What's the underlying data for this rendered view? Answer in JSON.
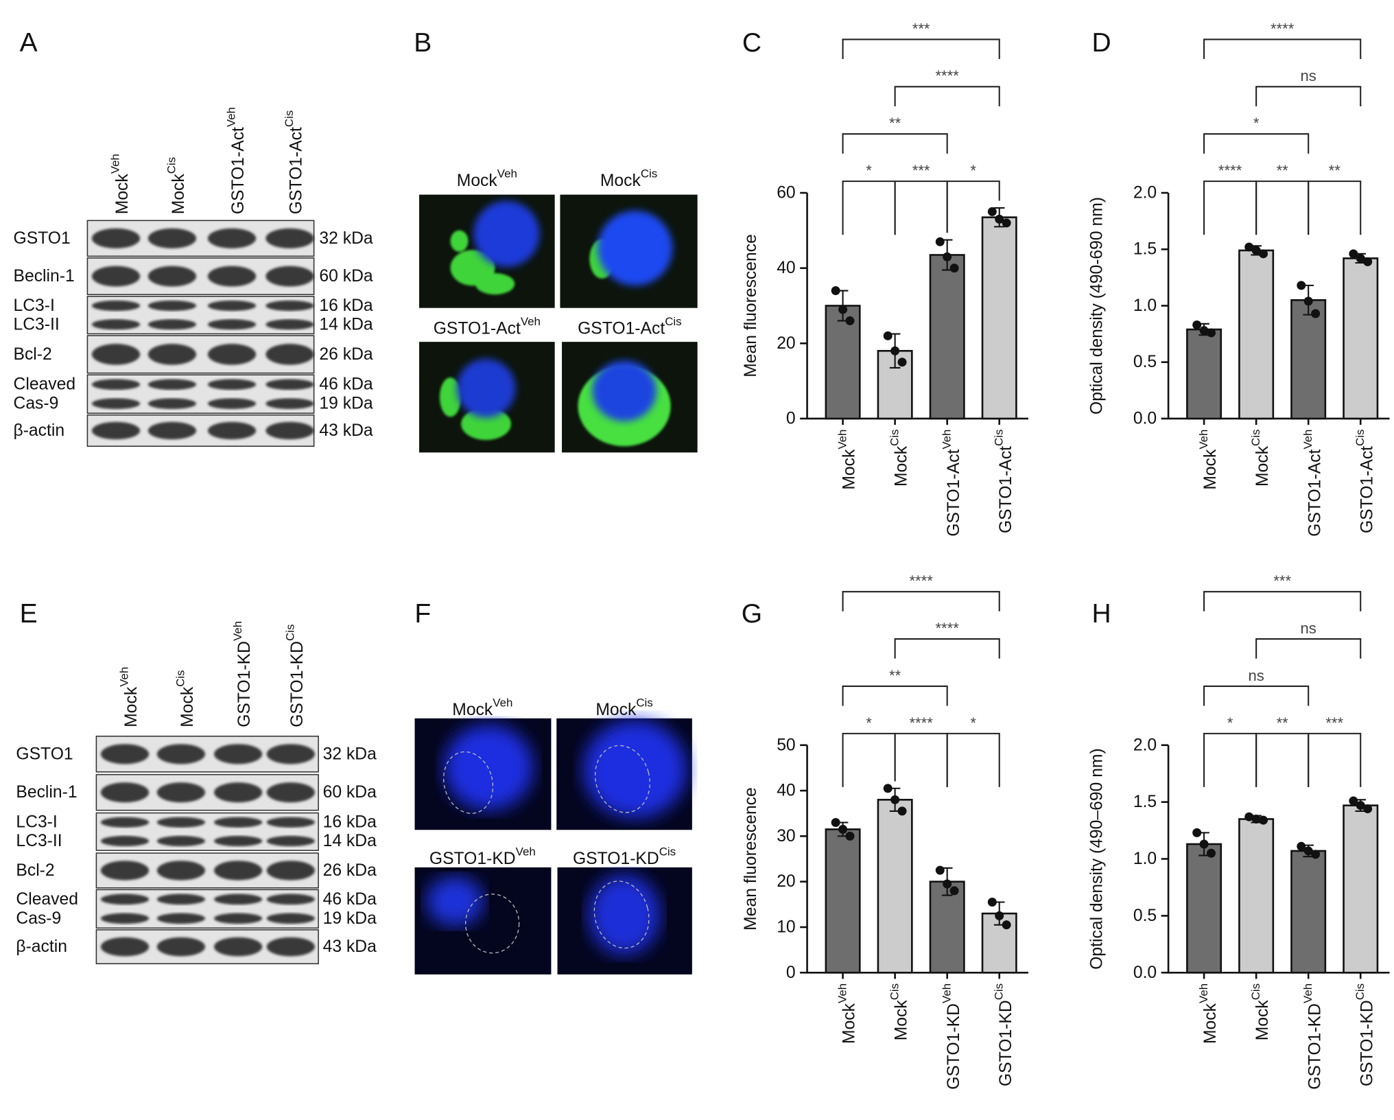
{
  "panel_labels": [
    "A",
    "B",
    "C",
    "D",
    "E",
    "F",
    "G",
    "H"
  ],
  "blots": [
    {
      "lanes": [
        "Mock",
        "Mock",
        "GSTO1-Act",
        "GSTO1-Act"
      ],
      "lane_superscripts": [
        "Veh",
        "Cis",
        "Veh",
        "Cis"
      ],
      "rows": [
        {
          "labels": [
            "GSTO1"
          ],
          "sizes": [
            "32 kDa"
          ]
        },
        {
          "labels": [
            "Beclin-1"
          ],
          "sizes": [
            "60 kDa"
          ]
        },
        {
          "labels": [
            "LC3-I",
            "LC3-II"
          ],
          "sizes": [
            "16 kDa",
            "14 kDa"
          ]
        },
        {
          "labels": [
            "Bcl-2"
          ],
          "sizes": [
            "26 kDa"
          ]
        },
        {
          "labels": [
            "Cleaved",
            "Cas-9"
          ],
          "sizes": [
            "46 kDa",
            "19 kDa"
          ]
        },
        {
          "labels": [
            "β-actin"
          ],
          "sizes": [
            "43 kDa"
          ]
        }
      ]
    },
    {
      "lanes": [
        "Mock",
        "Mock",
        "GSTO1-KD",
        "GSTO1-KD"
      ],
      "lane_superscripts": [
        "Veh",
        "Cis",
        "Veh",
        "Cis"
      ],
      "rows": [
        {
          "labels": [
            "GSTO1"
          ],
          "sizes": [
            "32 kDa"
          ]
        },
        {
          "labels": [
            "Beclin-1"
          ],
          "sizes": [
            "60 kDa"
          ]
        },
        {
          "labels": [
            "LC3-I",
            "LC3-II"
          ],
          "sizes": [
            "16 kDa",
            "14 kDa"
          ]
        },
        {
          "labels": [
            "Bcl-2"
          ],
          "sizes": [
            "26 kDa"
          ]
        },
        {
          "labels": [
            "Cleaved",
            "Cas-9"
          ],
          "sizes": [
            "46 kDa",
            "19 kDa"
          ]
        },
        {
          "labels": [
            "β-actin"
          ],
          "sizes": [
            "43 kDa"
          ]
        }
      ]
    }
  ],
  "micrographs": [
    {
      "labels": [
        "Mock",
        "Mock",
        "GSTO1-Act",
        "GSTO1-Act"
      ],
      "superscripts": [
        "Veh",
        "Cis",
        "Veh",
        "Cis"
      ]
    },
    {
      "labels": [
        "Mock",
        "Mock",
        "GSTO1-KD",
        "GSTO1-KD"
      ],
      "superscripts": [
        "Veh",
        "Cis",
        "Veh",
        "Cis"
      ]
    }
  ],
  "chart_data": [
    {
      "type": "bar",
      "y_label": "Mean fluorescence",
      "categories": [
        "Mock",
        "Mock",
        "GSTO1-Act",
        "GSTO1-Act"
      ],
      "category_superscripts": [
        "Veh",
        "Cis",
        "Veh",
        "Cis"
      ],
      "values": [
        30,
        18,
        43.5,
        53.5
      ],
      "errors": [
        4,
        4.5,
        4,
        2.5
      ],
      "points": [
        [
          34,
          29,
          26
        ],
        [
          22,
          18,
          15
        ],
        [
          47,
          43,
          40
        ],
        [
          55,
          53,
          52
        ]
      ],
      "colors": [
        "#6e6e6e",
        "#cccccc",
        "#6e6e6e",
        "#cccccc"
      ],
      "ylim": [
        0,
        60
      ],
      "yticks": [
        0,
        20,
        40,
        60
      ],
      "comparisons": [
        {
          "from": 0,
          "to": 1,
          "label": "*"
        },
        {
          "from": 1,
          "to": 2,
          "label": "***"
        },
        {
          "from": 2,
          "to": 3,
          "label": "*"
        },
        {
          "from": 0,
          "to": 2,
          "label": "**"
        },
        {
          "from": 1,
          "to": 3,
          "label": "****"
        },
        {
          "from": 0,
          "to": 3,
          "label": "***"
        }
      ]
    },
    {
      "type": "bar",
      "y_label": "Optical density (490-690 nm)",
      "categories": [
        "Mock",
        "Mock",
        "GSTO1-Act",
        "GSTO1-Act"
      ],
      "category_superscripts": [
        "Veh",
        "Cis",
        "Veh",
        "Cis"
      ],
      "values": [
        0.79,
        1.49,
        1.05,
        1.42
      ],
      "errors": [
        0.05,
        0.04,
        0.13,
        0.04
      ],
      "points": [
        [
          0.83,
          0.78,
          0.76
        ],
        [
          1.52,
          1.49,
          1.46
        ],
        [
          1.18,
          1.04,
          0.93
        ],
        [
          1.46,
          1.42,
          1.39
        ]
      ],
      "colors": [
        "#6e6e6e",
        "#cccccc",
        "#6e6e6e",
        "#cccccc"
      ],
      "ylim": [
        0,
        2
      ],
      "yticks": [
        {
          "value": 0,
          "label": "0.0"
        },
        {
          "value": 0.5,
          "label": "0.5"
        },
        {
          "value": 1,
          "label": "1.0"
        },
        {
          "value": 1.5,
          "label": "1.5"
        },
        {
          "value": 2,
          "label": "2.0"
        }
      ],
      "comparisons": [
        {
          "from": 0,
          "to": 1,
          "label": "****"
        },
        {
          "from": 2,
          "to": 3,
          "label": "**"
        },
        {
          "from": 1,
          "to": 2,
          "label": "**"
        },
        {
          "from": 0,
          "to": 2,
          "label": "*"
        },
        {
          "from": 1,
          "to": 3,
          "label": "ns"
        },
        {
          "from": 0,
          "to": 3,
          "label": "****"
        }
      ]
    },
    {
      "type": "bar",
      "y_label": "Mean fluorescence",
      "categories": [
        "Mock",
        "Mock",
        "GSTO1-KD",
        "GSTO1-KD"
      ],
      "category_superscripts": [
        "Veh",
        "Cis",
        "Veh",
        "Cis"
      ],
      "values": [
        31.5,
        38,
        20,
        13
      ],
      "errors": [
        1.5,
        2.5,
        3,
        2.5
      ],
      "points": [
        [
          33,
          31.5,
          30
        ],
        [
          40.5,
          38,
          35.5
        ],
        [
          22.5,
          19.5,
          18
        ],
        [
          15.5,
          12.5,
          10.5
        ]
      ],
      "colors": [
        "#6e6e6e",
        "#cccccc",
        "#6e6e6e",
        "#cccccc"
      ],
      "ylim": [
        0,
        50
      ],
      "yticks": [
        0,
        10,
        20,
        30,
        40,
        50
      ],
      "comparisons": [
        {
          "from": 0,
          "to": 1,
          "label": "*"
        },
        {
          "from": 1,
          "to": 2,
          "label": "****"
        },
        {
          "from": 2,
          "to": 3,
          "label": "*"
        },
        {
          "from": 0,
          "to": 2,
          "label": "**"
        },
        {
          "from": 1,
          "to": 3,
          "label": "****"
        },
        {
          "from": 0,
          "to": 3,
          "label": "****"
        }
      ]
    },
    {
      "type": "bar",
      "y_label": "Optical density (490–690 nm)",
      "categories": [
        "Mock",
        "Mock",
        "GSTO1-KD",
        "GSTO1-KD"
      ],
      "category_superscripts": [
        "Veh",
        "Cis",
        "Veh",
        "Cis"
      ],
      "values": [
        1.13,
        1.35,
        1.07,
        1.47
      ],
      "errors": [
        0.1,
        0.03,
        0.05,
        0.05
      ],
      "points": [
        [
          1.23,
          1.13,
          1.05
        ],
        [
          1.37,
          1.35,
          1.34
        ],
        [
          1.11,
          1.07,
          1.04
        ],
        [
          1.51,
          1.47,
          1.44
        ]
      ],
      "colors": [
        "#6e6e6e",
        "#cccccc",
        "#6e6e6e",
        "#cccccc"
      ],
      "ylim": [
        0,
        2
      ],
      "yticks": [
        {
          "value": 0,
          "label": "0.0"
        },
        {
          "value": 0.5,
          "label": "0.5"
        },
        {
          "value": 1,
          "label": "1.0"
        },
        {
          "value": 1.5,
          "label": "1.5"
        },
        {
          "value": 2,
          "label": "2.0"
        }
      ],
      "comparisons": [
        {
          "from": 0,
          "to": 1,
          "label": "*"
        },
        {
          "from": 1,
          "to": 2,
          "label": "**"
        },
        {
          "from": 2,
          "to": 3,
          "label": "***"
        },
        {
          "from": 0,
          "to": 2,
          "label": "ns"
        },
        {
          "from": 1,
          "to": 3,
          "label": "ns"
        },
        {
          "from": 0,
          "to": 3,
          "label": "***"
        }
      ]
    }
  ]
}
